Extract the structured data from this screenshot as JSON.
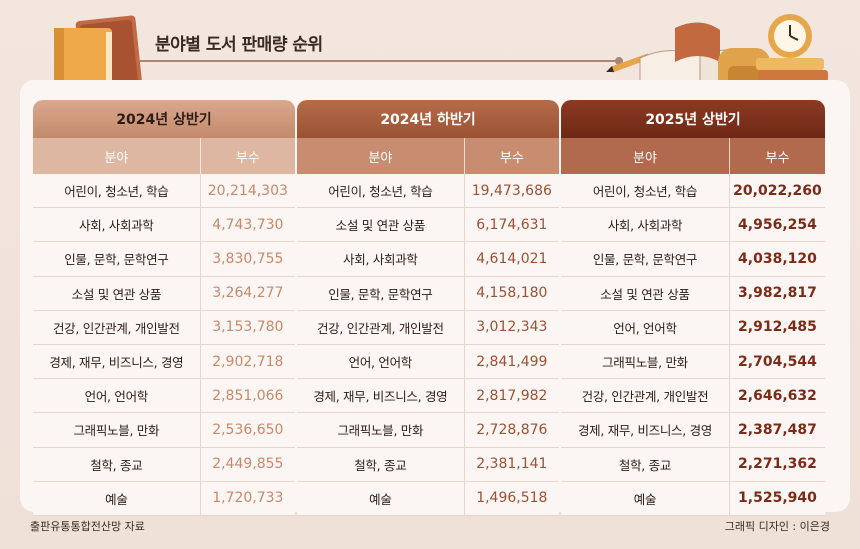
{
  "title": "분야별 도서 판매량 순위",
  "sub_headers": {
    "category": "분야",
    "count": "부수"
  },
  "groups": [
    {
      "period": "2024년 상반기",
      "rows": [
        {
          "category": "어린이, 청소년, 학습",
          "count": "20,214,303"
        },
        {
          "category": "사회, 사회과학",
          "count": "4,743,730"
        },
        {
          "category": "인물, 문학, 문학연구",
          "count": "3,830,755"
        },
        {
          "category": "소설 및 연관 상품",
          "count": "3,264,277"
        },
        {
          "category": "건강, 인간관계, 개인발전",
          "count": "3,153,780"
        },
        {
          "category": "경제, 재무, 비즈니스, 경영",
          "count": "2,902,718"
        },
        {
          "category": "언어, 언어학",
          "count": "2,851,066"
        },
        {
          "category": "그래픽노블, 만화",
          "count": "2,536,650"
        },
        {
          "category": "철학, 종교",
          "count": "2,449,855"
        },
        {
          "category": "예술",
          "count": "1,720,733"
        }
      ]
    },
    {
      "period": "2024년 하반기",
      "rows": [
        {
          "category": "어린이, 청소년, 학습",
          "count": "19,473,686"
        },
        {
          "category": "소설 및 연관 상품",
          "count": "6,174,631"
        },
        {
          "category": "사회, 사회과학",
          "count": "4,614,021"
        },
        {
          "category": "인물, 문학, 문학연구",
          "count": "4,158,180"
        },
        {
          "category": "건강, 인간관계, 개인발전",
          "count": "3,012,343"
        },
        {
          "category": "언어, 언어학",
          "count": "2,841,499"
        },
        {
          "category": "경제, 재무, 비즈니스, 경영",
          "count": "2,817,982"
        },
        {
          "category": "그래픽노블, 만화",
          "count": "2,728,876"
        },
        {
          "category": "철학, 종교",
          "count": "2,381,141"
        },
        {
          "category": "예술",
          "count": "1,496,518"
        }
      ]
    },
    {
      "period": "2025년 상반기",
      "rows": [
        {
          "category": "어린이, 청소년, 학습",
          "count": "20,022,260"
        },
        {
          "category": "사회, 사회과학",
          "count": "4,956,254"
        },
        {
          "category": "인물, 문학, 문학연구",
          "count": "4,038,120"
        },
        {
          "category": "소설 및 연관 상품",
          "count": "3,982,817"
        },
        {
          "category": "언어, 언어학",
          "count": "2,912,485"
        },
        {
          "category": "그래픽노블, 만화",
          "count": "2,704,544"
        },
        {
          "category": "건강, 인간관계, 개인발전",
          "count": "2,646,632"
        },
        {
          "category": "경제, 재무, 비즈니스, 경영",
          "count": "2,387,487"
        },
        {
          "category": "철학, 종교",
          "count": "2,271,362"
        },
        {
          "category": "예술",
          "count": "1,525,940"
        }
      ]
    }
  ],
  "footer": {
    "source": "출판유통통합전산망 자료",
    "credit": "그래픽 디자인 : 이은경"
  },
  "icons": [
    "books-icon",
    "open-book-icon",
    "backpack-icon",
    "alarm-clock-icon",
    "pencil-icon"
  ],
  "colors": {
    "period1": "#c48a6c",
    "period2": "#9a5234",
    "period3": "#6e2816"
  }
}
